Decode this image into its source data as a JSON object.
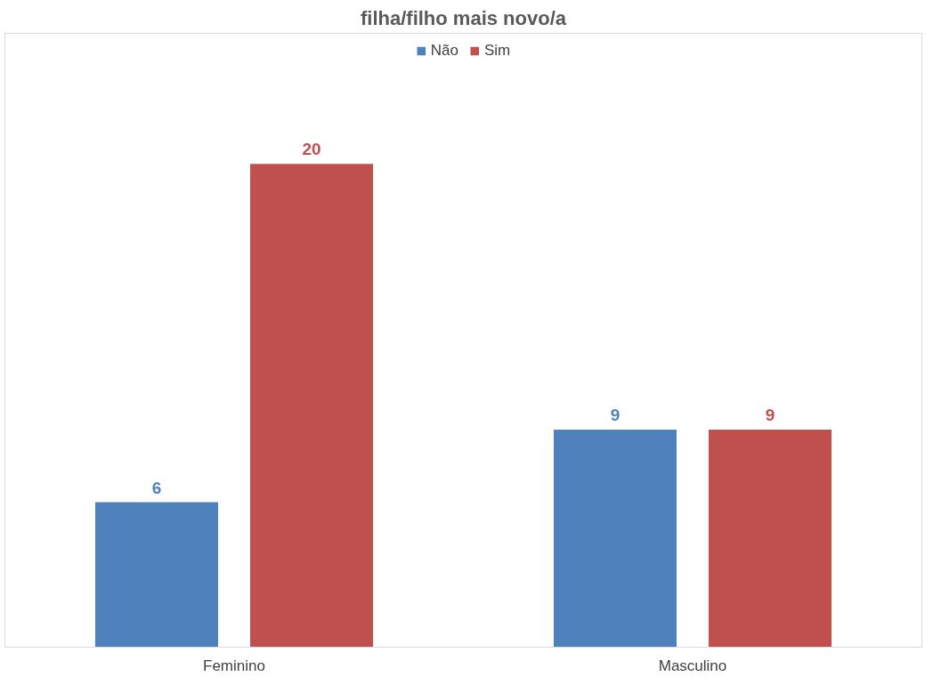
{
  "chart_data": {
    "type": "bar",
    "title": "filha/filho mais novo/a",
    "categories": [
      "Feminino",
      "Masculino"
    ],
    "series": [
      {
        "name": "Não",
        "color": "#4f81bd",
        "values": [
          6,
          9
        ]
      },
      {
        "name": "Sim",
        "color": "#c0504d",
        "values": [
          20,
          9
        ]
      }
    ],
    "data_labels": true,
    "legend": "top",
    "grid": false
  }
}
